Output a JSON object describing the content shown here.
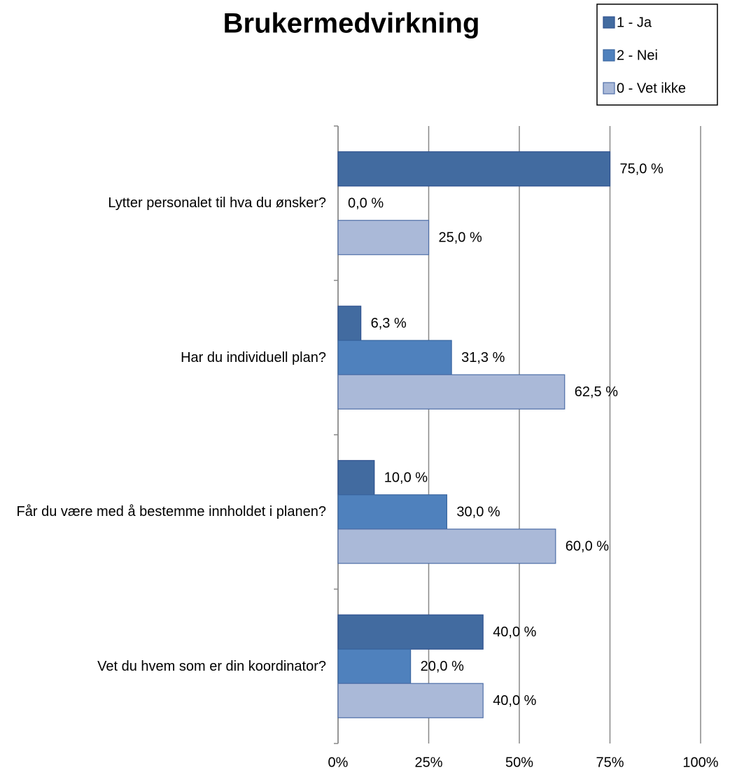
{
  "chart_data": {
    "type": "hbar",
    "title": "Brukermedvirkning",
    "categories": [
      "Lytter personalet til hva du ønsker?",
      "Har du individuell plan?",
      "Får du være med å bestemme innholdet i planen?",
      "Vet du hvem som er din koordinator?"
    ],
    "series": [
      {
        "name": "1 - Ja",
        "color": "#426ba0",
        "values": [
          75,
          6.3,
          10,
          40
        ],
        "value_labels": [
          "75,0 %",
          "6,3 %",
          "10,0 %",
          "40,0 %"
        ]
      },
      {
        "name": "2 - Nei",
        "color": "#4f81bd",
        "values": [
          0,
          31.3,
          30,
          20
        ],
        "value_labels": [
          "0,0 %",
          "31,3 %",
          "30,0 %",
          "20,0 %"
        ]
      },
      {
        "name": "0 - Vet ikke",
        "color": "#aab9d8",
        "values": [
          25,
          62.5,
          60,
          40
        ],
        "value_labels": [
          "25,0 %",
          "62,5 %",
          "60,0 %",
          "40,0 %"
        ]
      }
    ],
    "xlim": [
      0,
      100
    ],
    "xticks": [
      {
        "value": 0,
        "label": "0%"
      },
      {
        "value": 25,
        "label": "25%"
      },
      {
        "value": 50,
        "label": "50%"
      },
      {
        "value": 75,
        "label": "75%"
      },
      {
        "value": 100,
        "label": "100%"
      }
    ],
    "grid": true,
    "legend": "top-right"
  }
}
